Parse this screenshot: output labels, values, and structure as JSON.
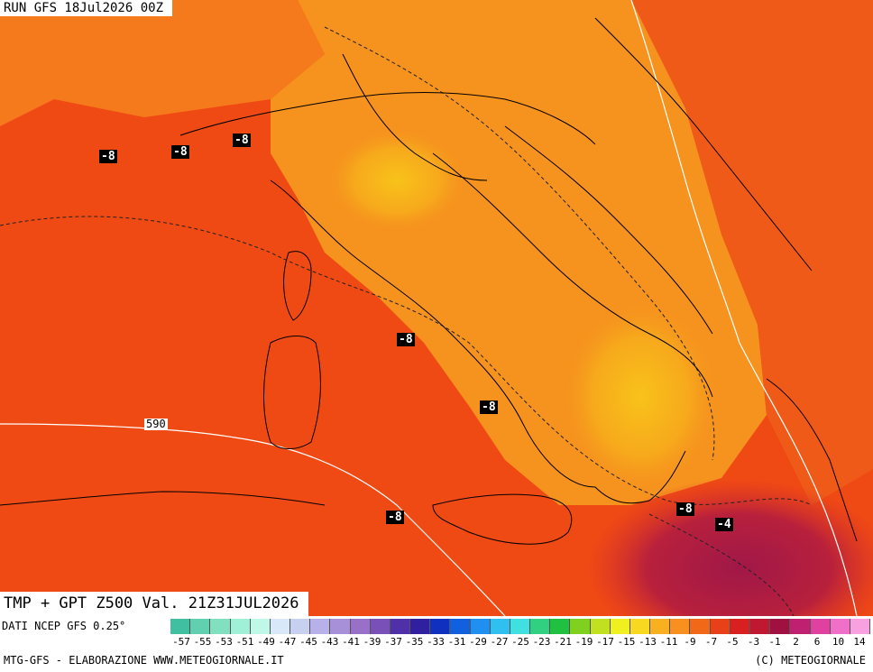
{
  "header": {
    "run_label": "RUN GFS 18Jul2026 00Z"
  },
  "title": {
    "text": "TMP + GPT Z500 Val. 21Z31JUL2026"
  },
  "footer": {
    "source": "DATI NCEP GFS 0.25°",
    "credit_left": "MTG-GFS - ELABORAZIONE WWW.METEOGIORNALE.IT",
    "credit_right": "(C) METEOGIORNALE"
  },
  "map_labels": {
    "temp": [
      "-8",
      "-8",
      "-8",
      "-8",
      "-8",
      "-8",
      "-8",
      "-4"
    ],
    "isohypse": "590"
  },
  "colors": {
    "sea_temp": "#f04a14",
    "warm_land": "#f6921e",
    "hot_core": "#f8c21a",
    "cool_southeast": "#b01c4a",
    "borders": "#000000",
    "isohypse_line": "#ffffff"
  },
  "color_scale": {
    "tick_labels": [
      "-57",
      "-55",
      "-53",
      "-51",
      "-49",
      "-47",
      "-45",
      "-43",
      "-41",
      "-39",
      "-37",
      "-35",
      "-33",
      "-31",
      "-29",
      "-27",
      "-25",
      "-23",
      "-21",
      "-19",
      "-17",
      "-15",
      "-13",
      "-11",
      "-9",
      "-7",
      "-5",
      "-3",
      "-1",
      "2",
      "6",
      "10",
      "14"
    ],
    "colors": [
      "#40c0a0",
      "#60d0b0",
      "#80e0c0",
      "#a0f0d8",
      "#c0f8e8",
      "#d8e8f8",
      "#c8d0f0",
      "#b8b0e8",
      "#a890d8",
      "#9870c8",
      "#7850b8",
      "#5030a8",
      "#3020a0",
      "#1030c0",
      "#1060e0",
      "#2090f0",
      "#30c0f0",
      "#40e0e0",
      "#30d080",
      "#20c040",
      "#80d020",
      "#c0e020",
      "#f0f020",
      "#f8d820",
      "#f8b020",
      "#f89020",
      "#f06818",
      "#e84018",
      "#d82020",
      "#c01830",
      "#a01040",
      "#c02070",
      "#e040a0",
      "#f070c8",
      "#f8a0e0"
    ]
  }
}
